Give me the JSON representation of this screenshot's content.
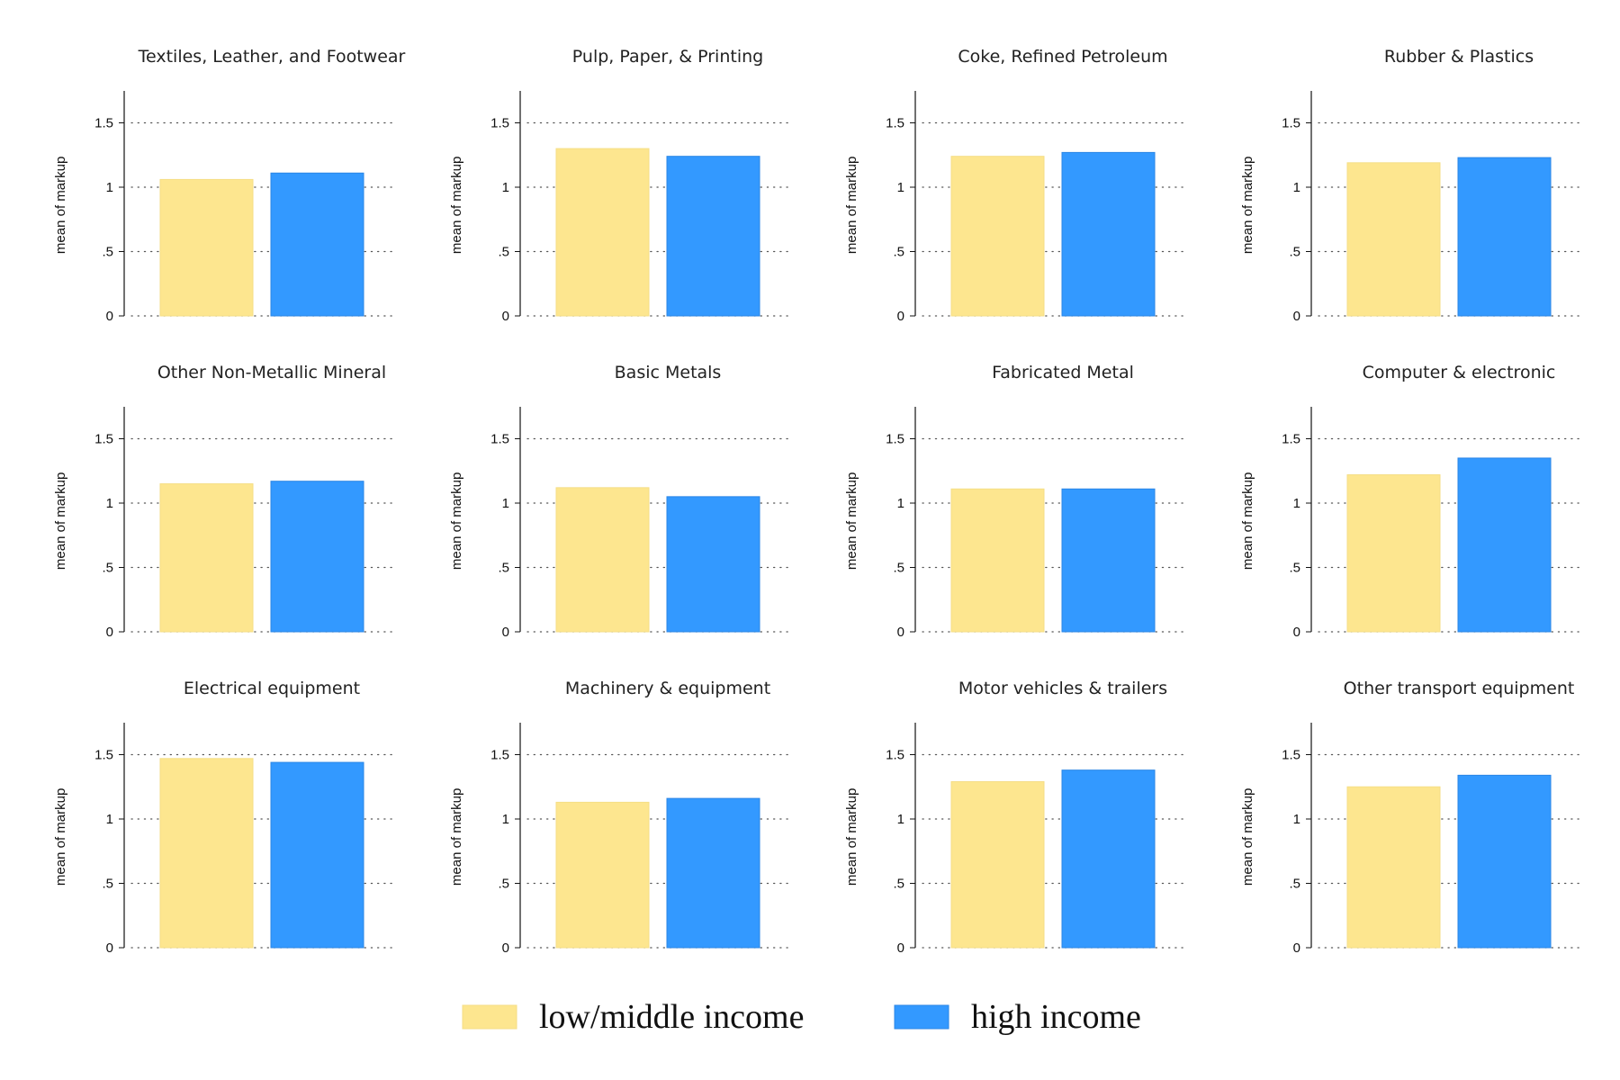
{
  "chart_data": {
    "type": "bar",
    "ylabel": "mean of markup",
    "ylim": [
      0,
      1.75
    ],
    "yticks": [
      0,
      0.5,
      1,
      1.5
    ],
    "ytick_labels": [
      "0",
      ".5",
      "1",
      "1.5"
    ],
    "grid": "horizontal dotted",
    "legend_position": "bottom",
    "series": [
      {
        "name": "low/middle income",
        "color": "#FDE68F"
      },
      {
        "name": "high income",
        "color": "#3399FF"
      }
    ],
    "panels": [
      {
        "title": "Textiles, Leather, and Footwear",
        "values": [
          1.06,
          1.11
        ]
      },
      {
        "title": "Pulp, Paper, & Printing",
        "values": [
          1.3,
          1.24
        ]
      },
      {
        "title": "Coke, Refined Petroleum",
        "values": [
          1.24,
          1.27
        ]
      },
      {
        "title": "Rubber & Plastics",
        "values": [
          1.19,
          1.23
        ]
      },
      {
        "title": "Other Non-Metallic Mineral",
        "values": [
          1.15,
          1.17
        ]
      },
      {
        "title": "Basic Metals",
        "values": [
          1.12,
          1.05
        ]
      },
      {
        "title": "Fabricated Metal",
        "values": [
          1.11,
          1.11
        ]
      },
      {
        "title": "Computer & electronic",
        "values": [
          1.22,
          1.35
        ]
      },
      {
        "title": "Electrical equipment",
        "values": [
          1.47,
          1.44
        ]
      },
      {
        "title": "Machinery & equipment",
        "values": [
          1.13,
          1.16
        ]
      },
      {
        "title": "Motor vehicles & trailers",
        "values": [
          1.29,
          1.38
        ]
      },
      {
        "title": "Other transport equipment",
        "values": [
          1.25,
          1.34
        ]
      }
    ]
  }
}
